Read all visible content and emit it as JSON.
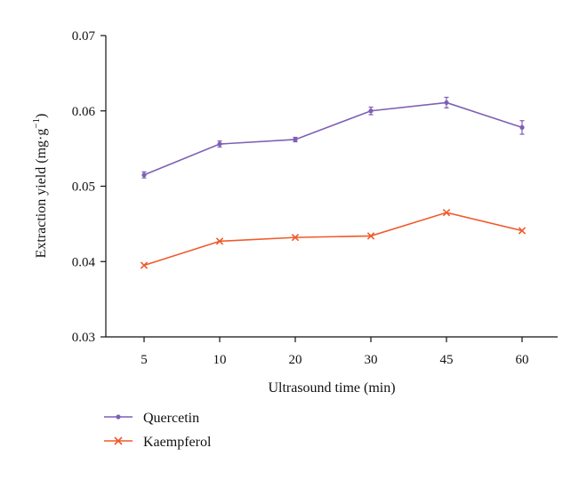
{
  "chart_data": {
    "type": "line",
    "title": "",
    "xlabel": "Ultrasound time (min)",
    "ylabel": "Extraction yield (mg·g",
    "ylabel_sup": "−1",
    "ylabel_close": ")",
    "categories": [
      "5",
      "10",
      "20",
      "30",
      "45",
      "60"
    ],
    "ylim": [
      0.03,
      0.07
    ],
    "yticks": [
      "0.03",
      "0.04",
      "0.05",
      "0.06",
      "0.07"
    ],
    "grid": false,
    "legend_position": "bottom-left",
    "series": [
      {
        "name": "Quercetin",
        "color": "#7f5fb5",
        "marker": "dot",
        "values": [
          0.0515,
          0.0556,
          0.0562,
          0.06,
          0.0611,
          0.0578
        ],
        "errors": [
          0.0004,
          0.0004,
          0.0003,
          0.0005,
          0.0007,
          0.0009
        ]
      },
      {
        "name": "Kaempferol",
        "color": "#f05a2a",
        "marker": "x",
        "values": [
          0.0395,
          0.0427,
          0.0432,
          0.0434,
          0.0465,
          0.0441
        ],
        "errors": [
          0,
          0,
          0,
          0,
          0,
          0
        ]
      }
    ]
  }
}
